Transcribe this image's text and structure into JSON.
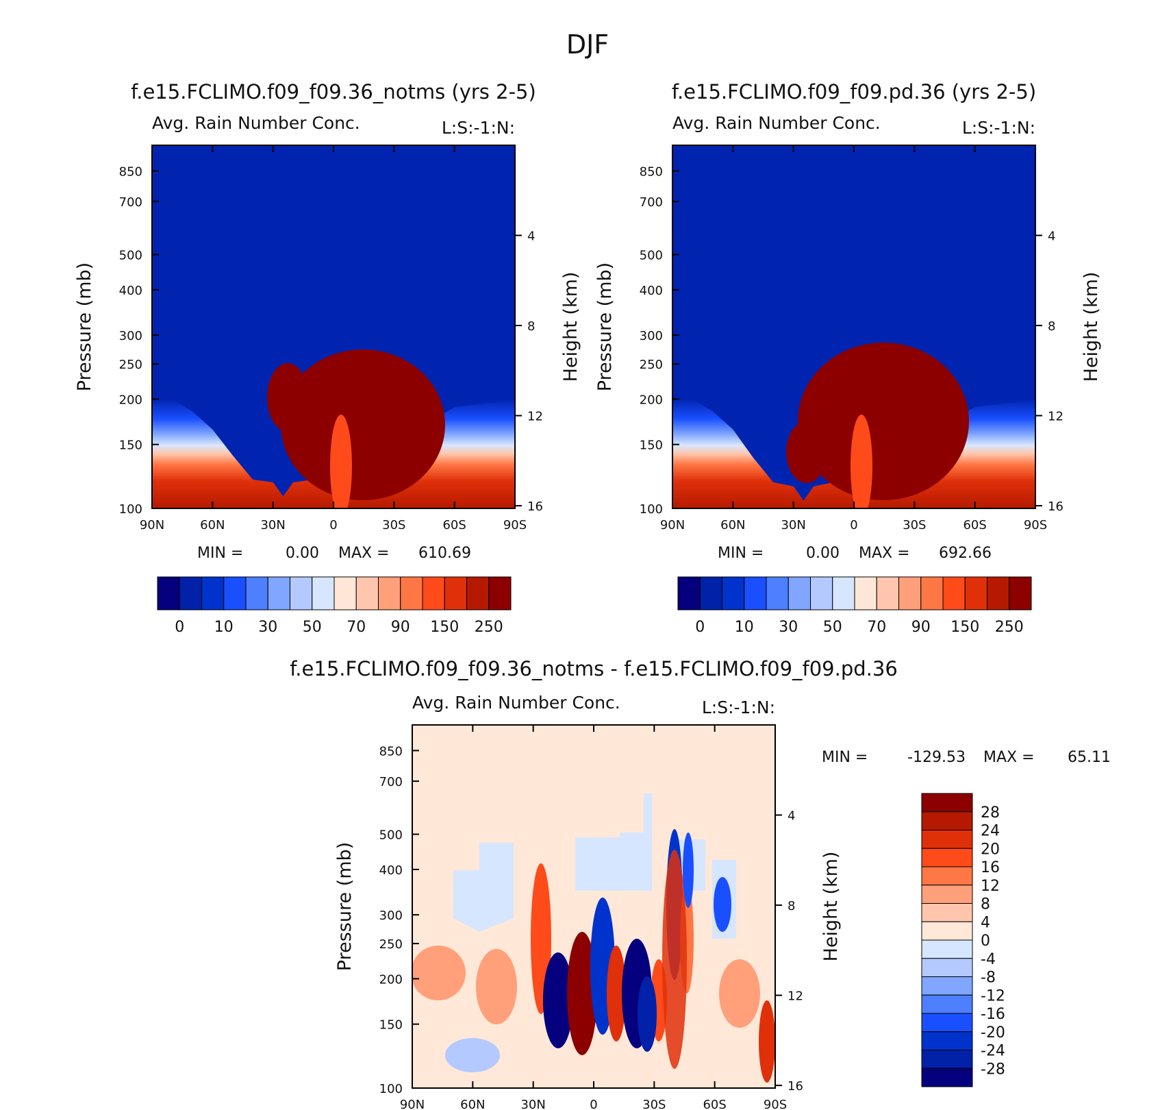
{
  "figure_title": "DJF",
  "colors": {
    "top_scale": [
      "#05007d",
      "#0021a8",
      "#0033cc",
      "#1a4fff",
      "#4d7fff",
      "#80a6ff",
      "#b3c9ff",
      "#d6e6ff",
      "#ffe6d6",
      "#ffc6ad",
      "#ffa07a",
      "#ff7744",
      "#ff4a1a",
      "#e0300a",
      "#b51a00",
      "#8c0000"
    ],
    "diff_scale": [
      "#8c0000",
      "#b51a00",
      "#e0300a",
      "#ff4a1a",
      "#ff7744",
      "#ffa07a",
      "#ffc6ad",
      "#ffe8d8",
      "#d6e6ff",
      "#b3c9ff",
      "#80a6ff",
      "#4d7fff",
      "#1a4fff",
      "#0033cc",
      "#0021a8",
      "#05007d"
    ]
  },
  "chart_data": [
    {
      "type": "contour",
      "title": "f.e15.FCLIMO.f09_f09.36_notms (yrs 2-5)",
      "subtitle": "Avg. Rain Number Conc.",
      "units_label": "L:S:-1:N:",
      "xlabel": "",
      "ylabel": "Pressure (mb)",
      "ylabel_right": "Height (km)",
      "x_ticks": [
        "90N",
        "60N",
        "30N",
        "0",
        "30S",
        "60S",
        "90S"
      ],
      "y_ticks": [
        "100",
        "150",
        "200",
        "250",
        "300",
        "400",
        "500",
        "700",
        "850"
      ],
      "y_tick_values": [
        100,
        150,
        200,
        250,
        300,
        400,
        500,
        700,
        850
      ],
      "y_right_ticks": [
        "4",
        "8",
        "12",
        "16"
      ],
      "ylim": [
        100,
        1000
      ],
      "stats": {
        "min_label": "MIN =",
        "min": "0.00",
        "max_label": "MAX =",
        "max": "610.69"
      },
      "colorbar_labels": [
        "0",
        "10",
        "30",
        "50",
        "70",
        "90",
        "150",
        "250"
      ],
      "profile": {
        "lat": [
          -90,
          -75,
          -60,
          -45,
          -30,
          -20,
          -10,
          0,
          10,
          20,
          25,
          30,
          40,
          50,
          60,
          70,
          80,
          90
        ],
        "top_pressure": [
          200,
          195,
          190,
          170,
          150,
          140,
          128,
          120,
          120,
          118,
          108,
          118,
          120,
          140,
          165,
          185,
          200,
          200
        ]
      }
    },
    {
      "type": "contour",
      "title": "f.e15.FCLIMO.f09_f09.pd.36 (yrs 2-5)",
      "subtitle": "Avg. Rain Number Conc.",
      "units_label": "L:S:-1:N:",
      "xlabel": "",
      "ylabel": "Pressure (mb)",
      "ylabel_right": "Height (km)",
      "x_ticks": [
        "90N",
        "60N",
        "30N",
        "0",
        "30S",
        "60S",
        "90S"
      ],
      "y_ticks": [
        "100",
        "150",
        "200",
        "250",
        "300",
        "400",
        "500",
        "700",
        "850"
      ],
      "y_tick_values": [
        100,
        150,
        200,
        250,
        300,
        400,
        500,
        700,
        850
      ],
      "y_right_ticks": [
        "4",
        "8",
        "12",
        "16"
      ],
      "ylim": [
        100,
        1000
      ],
      "stats": {
        "min_label": "MIN =",
        "min": "0.00",
        "max_label": "MAX =",
        "max": "692.66"
      },
      "colorbar_labels": [
        "0",
        "10",
        "30",
        "50",
        "70",
        "90",
        "150",
        "250"
      ],
      "profile": {
        "lat": [
          -90,
          -75,
          -60,
          -45,
          -30,
          -20,
          -10,
          0,
          10,
          20,
          25,
          30,
          40,
          50,
          60,
          70,
          80,
          90
        ],
        "top_pressure": [
          200,
          195,
          190,
          172,
          150,
          140,
          128,
          120,
          118,
          115,
          105,
          115,
          118,
          138,
          165,
          185,
          200,
          200
        ]
      }
    },
    {
      "type": "contour",
      "title": "f.e15.FCLIMO.f09_f09.36_notms - f.e15.FCLIMO.f09_f09.pd.36",
      "subtitle": "Avg. Rain Number Conc.",
      "units_label": "L:S:-1:N:",
      "xlabel": "",
      "ylabel": "Pressure (mb)",
      "ylabel_right": "Height (km)",
      "x_ticks": [
        "90N",
        "60N",
        "30N",
        "0",
        "30S",
        "60S",
        "90S"
      ],
      "y_ticks": [
        "100",
        "150",
        "200",
        "250",
        "300",
        "400",
        "500",
        "700",
        "850"
      ],
      "y_tick_values": [
        100,
        150,
        200,
        250,
        300,
        400,
        500,
        700,
        850
      ],
      "y_right_ticks": [
        "4",
        "8",
        "12",
        "16"
      ],
      "ylim": [
        100,
        1000
      ],
      "stats": {
        "min_label": "MIN =",
        "min": "-129.53",
        "max_label": "MAX =",
        "max": "65.11"
      },
      "colorbar_labels": [
        "28",
        "24",
        "20",
        "16",
        "12",
        "8",
        "4",
        "0",
        "-4",
        "-8",
        "-12",
        "-16",
        "-20",
        "-24",
        "-28"
      ]
    }
  ]
}
